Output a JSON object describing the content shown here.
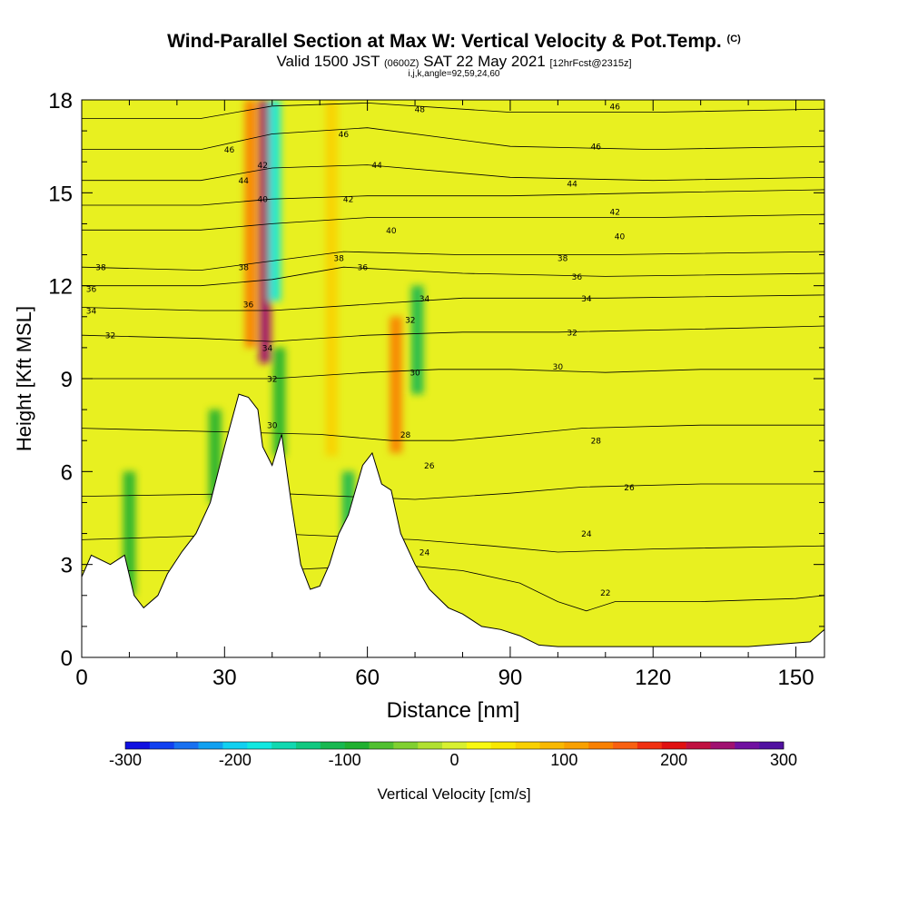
{
  "title": {
    "main": "Wind-Parallel Section at Max W: Vertical Velocity & Pot.Temp.",
    "main_suffix": "(C)",
    "valid_a": "Valid 1500 JST",
    "valid_b": "(0600Z)",
    "valid_c": "SAT 22 May 2021",
    "valid_d": "[12hrFcst@2315z]",
    "sub": "i,j,k,angle=92,59,24,60"
  },
  "chart_data": {
    "type": "heatmap",
    "xlabel": "Distance [nm]",
    "ylabel": "Height [Kft MSL]",
    "xlim": [
      0,
      156
    ],
    "ylim": [
      0,
      18
    ],
    "xticks": [
      0,
      30,
      60,
      90,
      120,
      150
    ],
    "yticks": [
      0,
      3,
      6,
      9,
      12,
      15,
      18
    ],
    "colorbar": {
      "label": "Vertical Velocity [cm/s]",
      "ticks": [
        -300,
        -200,
        -100,
        0,
        100,
        200,
        300
      ],
      "range": [
        -300,
        300
      ],
      "colors": [
        "#1010e0",
        "#1040f0",
        "#1870f0",
        "#10a0f0",
        "#10d0f0",
        "#10e8e0",
        "#10d8b0",
        "#10c880",
        "#18b850",
        "#20b030",
        "#50c030",
        "#80d030",
        "#b0e030",
        "#d8f030",
        "#f8f810",
        "#f8e800",
        "#f8d000",
        "#f8b800",
        "#f8a000",
        "#f88000",
        "#f86010",
        "#f03010",
        "#e01010",
        "#c01040",
        "#a01070",
        "#7010a0",
        "#5010a0"
      ]
    },
    "terrain_profile": [
      {
        "x": 0,
        "y": 2.6
      },
      {
        "x": 2,
        "y": 3.3
      },
      {
        "x": 6,
        "y": 3.0
      },
      {
        "x": 9,
        "y": 3.3
      },
      {
        "x": 11,
        "y": 2.0
      },
      {
        "x": 13,
        "y": 1.6
      },
      {
        "x": 16,
        "y": 2.0
      },
      {
        "x": 18,
        "y": 2.7
      },
      {
        "x": 21,
        "y": 3.4
      },
      {
        "x": 24,
        "y": 4.0
      },
      {
        "x": 27,
        "y": 5.0
      },
      {
        "x": 30,
        "y": 6.8
      },
      {
        "x": 33,
        "y": 8.5
      },
      {
        "x": 35,
        "y": 8.4
      },
      {
        "x": 37,
        "y": 8.0
      },
      {
        "x": 38,
        "y": 6.8
      },
      {
        "x": 40,
        "y": 6.2
      },
      {
        "x": 42,
        "y": 7.2
      },
      {
        "x": 44,
        "y": 5.0
      },
      {
        "x": 46,
        "y": 3.0
      },
      {
        "x": 48,
        "y": 2.2
      },
      {
        "x": 50,
        "y": 2.3
      },
      {
        "x": 52,
        "y": 3.0
      },
      {
        "x": 54,
        "y": 4.0
      },
      {
        "x": 56,
        "y": 4.6
      },
      {
        "x": 59,
        "y": 6.2
      },
      {
        "x": 61,
        "y": 6.6
      },
      {
        "x": 63,
        "y": 5.6
      },
      {
        "x": 65,
        "y": 5.4
      },
      {
        "x": 67,
        "y": 4.0
      },
      {
        "x": 70,
        "y": 3.0
      },
      {
        "x": 73,
        "y": 2.2
      },
      {
        "x": 77,
        "y": 1.6
      },
      {
        "x": 80,
        "y": 1.4
      },
      {
        "x": 84,
        "y": 1.0
      },
      {
        "x": 88,
        "y": 0.9
      },
      {
        "x": 92,
        "y": 0.7
      },
      {
        "x": 96,
        "y": 0.4
      },
      {
        "x": 100,
        "y": 0.35
      },
      {
        "x": 120,
        "y": 0.35
      },
      {
        "x": 140,
        "y": 0.35
      },
      {
        "x": 153,
        "y": 0.5
      },
      {
        "x": 156,
        "y": 0.9
      }
    ],
    "velocity_features": [
      {
        "x": 38.5,
        "y0": 9.5,
        "y1": 18,
        "value": 250
      },
      {
        "x": 40.5,
        "y0": 11.5,
        "y1": 18,
        "value": -180
      },
      {
        "x": 35.5,
        "y0": 10,
        "y1": 18,
        "value": 130
      },
      {
        "x": 41.5,
        "y0": 6.5,
        "y1": 10,
        "value": -100
      },
      {
        "x": 52.5,
        "y0": 6.5,
        "y1": 18,
        "value": 60
      },
      {
        "x": 66,
        "y0": 6.6,
        "y1": 11,
        "value": 130
      },
      {
        "x": 70.5,
        "y0": 8.5,
        "y1": 12,
        "value": -120
      },
      {
        "x": 56,
        "y0": 3.5,
        "y1": 6,
        "value": -110
      },
      {
        "x": 10,
        "y0": 2,
        "y1": 6,
        "value": -80
      },
      {
        "x": 28,
        "y0": 5,
        "y1": 8,
        "value": -90
      }
    ],
    "theta_contours": [
      {
        "value": 22,
        "points": [
          [
            0,
            2.8
          ],
          [
            40,
            2.8
          ],
          [
            66,
            3.0
          ],
          [
            80,
            2.8
          ],
          [
            92,
            2.4
          ],
          [
            100,
            1.8
          ],
          [
            106,
            1.5
          ],
          [
            112,
            1.8
          ],
          [
            130,
            1.8
          ],
          [
            150,
            1.9
          ],
          [
            156,
            2.0
          ]
        ]
      },
      {
        "value": 24,
        "points": [
          [
            0,
            3.8
          ],
          [
            40,
            4.0
          ],
          [
            70,
            3.8
          ],
          [
            86,
            3.6
          ],
          [
            100,
            3.4
          ],
          [
            120,
            3.5
          ],
          [
            156,
            3.6
          ]
        ]
      },
      {
        "value": 26,
        "points": [
          [
            0,
            5.2
          ],
          [
            40,
            5.3
          ],
          [
            70,
            5.1
          ],
          [
            90,
            5.3
          ],
          [
            105,
            5.5
          ],
          [
            130,
            5.6
          ],
          [
            156,
            5.6
          ]
        ]
      },
      {
        "value": 28,
        "points": [
          [
            0,
            7.4
          ],
          [
            50,
            7.2
          ],
          [
            65,
            7.0
          ],
          [
            78,
            7.0
          ],
          [
            92,
            7.2
          ],
          [
            105,
            7.4
          ],
          [
            130,
            7.5
          ],
          [
            156,
            7.5
          ]
        ]
      },
      {
        "value": 30,
        "points": [
          [
            0,
            9.0
          ],
          [
            25,
            9.0
          ],
          [
            40,
            9.0
          ],
          [
            60,
            9.2
          ],
          [
            75,
            9.3
          ],
          [
            90,
            9.3
          ],
          [
            110,
            9.2
          ],
          [
            130,
            9.3
          ],
          [
            156,
            9.3
          ]
        ]
      },
      {
        "value": 32,
        "points": [
          [
            0,
            10.4
          ],
          [
            25,
            10.3
          ],
          [
            40,
            10.2
          ],
          [
            60,
            10.4
          ],
          [
            80,
            10.5
          ],
          [
            100,
            10.5
          ],
          [
            130,
            10.6
          ],
          [
            156,
            10.7
          ]
        ]
      },
      {
        "value": 34,
        "points": [
          [
            0,
            11.3
          ],
          [
            25,
            11.2
          ],
          [
            40,
            11.2
          ],
          [
            60,
            11.4
          ],
          [
            80,
            11.6
          ],
          [
            110,
            11.6
          ],
          [
            156,
            11.7
          ]
        ]
      },
      {
        "value": 36,
        "points": [
          [
            0,
            12.0
          ],
          [
            25,
            12.0
          ],
          [
            40,
            12.2
          ],
          [
            55,
            12.6
          ],
          [
            80,
            12.4
          ],
          [
            110,
            12.3
          ],
          [
            156,
            12.4
          ]
        ]
      },
      {
        "value": 38,
        "points": [
          [
            0,
            12.6
          ],
          [
            25,
            12.5
          ],
          [
            40,
            12.8
          ],
          [
            55,
            13.1
          ],
          [
            80,
            13.0
          ],
          [
            110,
            13.0
          ],
          [
            156,
            13.1
          ]
        ]
      },
      {
        "value": 40,
        "points": [
          [
            0,
            13.8
          ],
          [
            25,
            13.8
          ],
          [
            40,
            14.0
          ],
          [
            60,
            14.2
          ],
          [
            90,
            14.2
          ],
          [
            120,
            14.2
          ],
          [
            156,
            14.3
          ]
        ]
      },
      {
        "value": 42,
        "points": [
          [
            0,
            14.6
          ],
          [
            25,
            14.6
          ],
          [
            40,
            14.8
          ],
          [
            60,
            14.9
          ],
          [
            90,
            14.9
          ],
          [
            120,
            15.0
          ],
          [
            156,
            15.1
          ]
        ]
      },
      {
        "value": 44,
        "points": [
          [
            0,
            15.4
          ],
          [
            25,
            15.4
          ],
          [
            40,
            15.8
          ],
          [
            60,
            15.9
          ],
          [
            90,
            15.5
          ],
          [
            120,
            15.4
          ],
          [
            156,
            15.5
          ]
        ]
      },
      {
        "value": 46,
        "points": [
          [
            0,
            16.4
          ],
          [
            25,
            16.4
          ],
          [
            40,
            16.9
          ],
          [
            60,
            17.1
          ],
          [
            90,
            16.5
          ],
          [
            120,
            16.4
          ],
          [
            156,
            16.5
          ]
        ]
      },
      {
        "value": 48,
        "points": [
          [
            0,
            17.4
          ],
          [
            25,
            17.4
          ],
          [
            40,
            17.8
          ],
          [
            60,
            17.9
          ],
          [
            90,
            17.6
          ],
          [
            120,
            17.6
          ],
          [
            156,
            17.7
          ]
        ]
      }
    ],
    "contour_labels": [
      {
        "text": "46",
        "x": 31,
        "y": 16.4
      },
      {
        "text": "44",
        "x": 34,
        "y": 15.4
      },
      {
        "text": "42",
        "x": 38,
        "y": 15.9
      },
      {
        "text": "40",
        "x": 38,
        "y": 14.8
      },
      {
        "text": "38",
        "x": 34,
        "y": 12.6
      },
      {
        "text": "36",
        "x": 35,
        "y": 11.4
      },
      {
        "text": "34",
        "x": 39,
        "y": 10.0
      },
      {
        "text": "32",
        "x": 40,
        "y": 9.0
      },
      {
        "text": "30",
        "x": 40,
        "y": 7.5
      },
      {
        "text": "46",
        "x": 55,
        "y": 16.9
      },
      {
        "text": "44",
        "x": 62,
        "y": 15.9
      },
      {
        "text": "42",
        "x": 56,
        "y": 14.8
      },
      {
        "text": "40",
        "x": 65,
        "y": 13.8
      },
      {
        "text": "38",
        "x": 54,
        "y": 12.9
      },
      {
        "text": "36",
        "x": 59,
        "y": 12.6
      },
      {
        "text": "34",
        "x": 72,
        "y": 11.6
      },
      {
        "text": "32",
        "x": 69,
        "y": 10.9
      },
      {
        "text": "30",
        "x": 70,
        "y": 9.2
      },
      {
        "text": "28",
        "x": 68,
        "y": 7.2
      },
      {
        "text": "26",
        "x": 73,
        "y": 6.2
      },
      {
        "text": "24",
        "x": 72,
        "y": 3.4
      },
      {
        "text": "48",
        "x": 71,
        "y": 17.7
      },
      {
        "text": "38",
        "x": 4,
        "y": 12.6
      },
      {
        "text": "36",
        "x": 2,
        "y": 11.9
      },
      {
        "text": "34",
        "x": 2,
        "y": 11.2
      },
      {
        "text": "32",
        "x": 6,
        "y": 10.4
      },
      {
        "text": "46",
        "x": 112,
        "y": 17.8
      },
      {
        "text": "46",
        "x": 108,
        "y": 16.5
      },
      {
        "text": "44",
        "x": 103,
        "y": 15.3
      },
      {
        "text": "42",
        "x": 112,
        "y": 14.4
      },
      {
        "text": "40",
        "x": 113,
        "y": 13.6
      },
      {
        "text": "38",
        "x": 101,
        "y": 12.9
      },
      {
        "text": "36",
        "x": 104,
        "y": 12.3
      },
      {
        "text": "34",
        "x": 106,
        "y": 11.6
      },
      {
        "text": "32",
        "x": 103,
        "y": 10.5
      },
      {
        "text": "30",
        "x": 100,
        "y": 9.4
      },
      {
        "text": "28",
        "x": 108,
        "y": 7.0
      },
      {
        "text": "26",
        "x": 115,
        "y": 5.5
      },
      {
        "text": "24",
        "x": 106,
        "y": 4.0
      },
      {
        "text": "22",
        "x": 110,
        "y": 2.1
      }
    ]
  }
}
